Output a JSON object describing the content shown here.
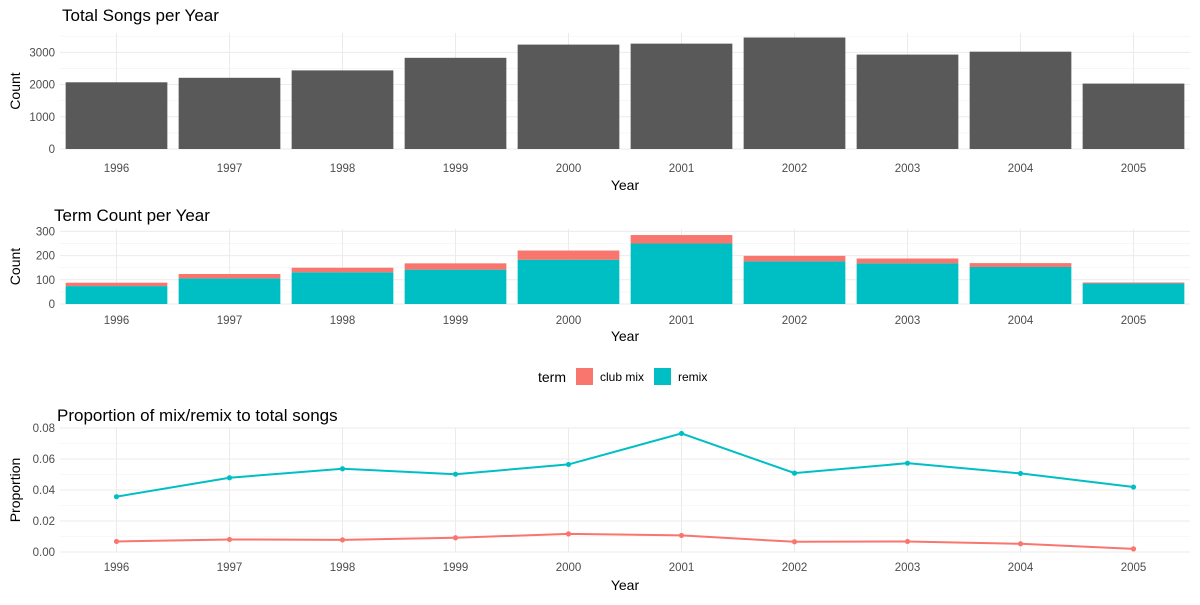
{
  "chart_data": [
    {
      "type": "bar",
      "title": "Total Songs per Year",
      "xlabel": "Year",
      "ylabel": "Count",
      "categories": [
        "1996",
        "1997",
        "1998",
        "1999",
        "2000",
        "2001",
        "2002",
        "2003",
        "2004",
        "2005"
      ],
      "values": [
        2070,
        2210,
        2440,
        2830,
        3240,
        3270,
        3460,
        2930,
        3020,
        2030
      ],
      "ylim": [
        0,
        3600
      ],
      "yticks": [
        0,
        1000,
        2000,
        3000
      ],
      "bar_color": "#595959",
      "grid": true
    },
    {
      "type": "bar",
      "stacked": true,
      "title": "Term Count per Year",
      "xlabel": "Year",
      "ylabel": "Count",
      "categories": [
        "1996",
        "1997",
        "1998",
        "1999",
        "2000",
        "2001",
        "2002",
        "2003",
        "2004",
        "2005"
      ],
      "series": [
        {
          "name": "remix",
          "color": "#00bfc4",
          "values": [
            74,
            106,
            131,
            142,
            183,
            250,
            176,
            168,
            153,
            85
          ]
        },
        {
          "name": "club mix",
          "color": "#f8766d",
          "values": [
            14,
            18,
            19,
            26,
            38,
            35,
            23,
            20,
            16,
            4
          ]
        }
      ],
      "ylim": [
        0,
        310
      ],
      "yticks": [
        0,
        100,
        200,
        300
      ],
      "grid": true
    },
    {
      "type": "line",
      "title": "Proportion of mix/remix to total songs",
      "xlabel": "Year",
      "ylabel": "Proportion",
      "categories": [
        "1996",
        "1997",
        "1998",
        "1999",
        "2000",
        "2001",
        "2002",
        "2003",
        "2004",
        "2005"
      ],
      "series": [
        {
          "name": "remix",
          "color": "#00bfc4",
          "values": [
            0.0357,
            0.0479,
            0.0537,
            0.0502,
            0.0565,
            0.0765,
            0.0509,
            0.0573,
            0.0507,
            0.0419
          ]
        },
        {
          "name": "club mix",
          "color": "#f8766d",
          "values": [
            0.0068,
            0.0081,
            0.0078,
            0.0092,
            0.0117,
            0.0107,
            0.0066,
            0.0068,
            0.0053,
            0.002
          ]
        }
      ],
      "ylim": [
        0,
        0.08
      ],
      "yticks": [
        0.0,
        0.02,
        0.04,
        0.06,
        0.08
      ],
      "ytick_labels": [
        "0.00",
        "0.02",
        "0.04",
        "0.06",
        "0.08"
      ],
      "grid": true
    }
  ],
  "legend": {
    "title": "term",
    "placement": "bottom",
    "items": [
      {
        "label": "club mix",
        "color": "#f8766d"
      },
      {
        "label": "remix",
        "color": "#00bfc4"
      }
    ]
  }
}
